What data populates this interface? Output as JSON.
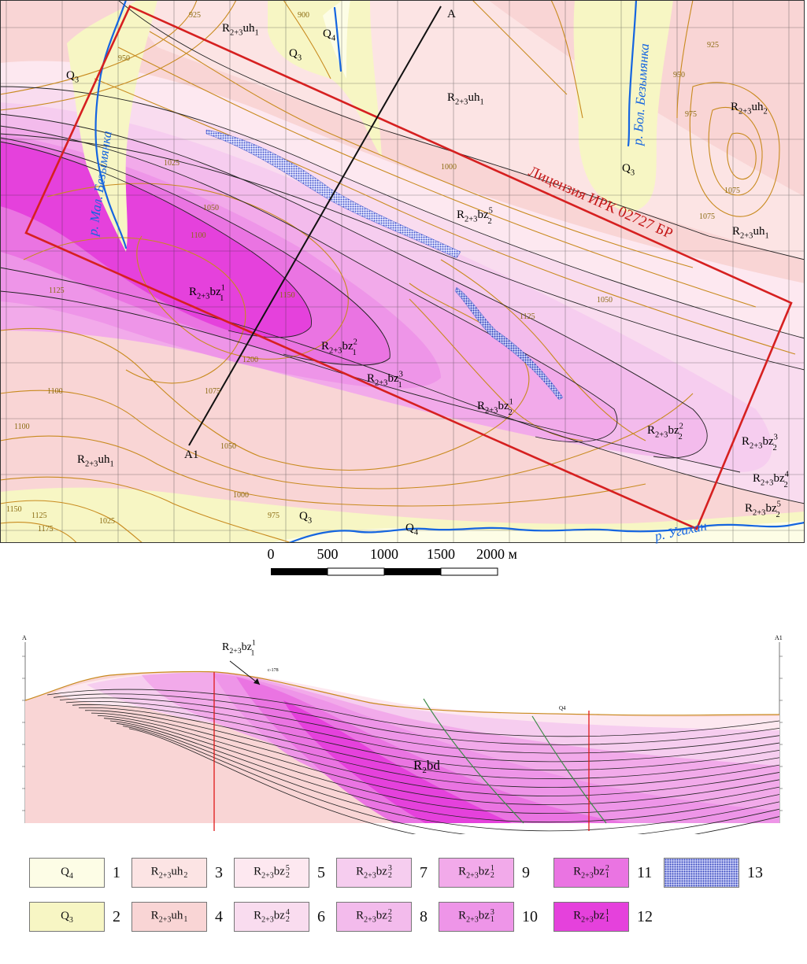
{
  "map": {
    "colors": {
      "Q4": "#fdfde6",
      "Q3": "#f7f6c4",
      "uh2": "#fce4e4",
      "uh1": "#f9d5d5",
      "bz2_5": "#fde8f0",
      "bz2_4": "#f9dcef",
      "bz2_3": "#f6cdef",
      "bz2_2": "#f3bbec",
      "bz2_1": "#f2aaea",
      "bz1_3": "#ee95e8",
      "bz1_2": "#ea74e2",
      "bz1_1": "#e541dc",
      "river": "#1565e0",
      "license": "#d62020",
      "contour": "#c88a1e",
      "section_line": "#111111",
      "dots": "#5566dd"
    },
    "license_label": "Лицензия ИРК 02727 БР",
    "section_end_a": "A",
    "section_end_a1": "A1",
    "rivers": [
      {
        "label": "р. Мал. Безымянка"
      },
      {
        "label": "р. Бол. Безымянка"
      },
      {
        "label": "р. Угахан"
      }
    ],
    "unit_labels": [
      {
        "base": "R",
        "sub": "2+3",
        "main": "uh",
        "sub2": "1",
        "sup": ""
      },
      {
        "base": "Q",
        "sub": "4",
        "main": "",
        "sub2": "",
        "sup": ""
      },
      {
        "base": "Q",
        "sub": "3",
        "main": "",
        "sub2": "",
        "sup": ""
      },
      {
        "base": "Q",
        "sub": "3",
        "main": "",
        "sub2": "",
        "sup": ""
      },
      {
        "base": "R",
        "sub": "2+3",
        "main": "uh",
        "sub2": "1",
        "sup": ""
      },
      {
        "base": "R",
        "sub": "2+3",
        "main": "uh",
        "sub2": "2",
        "sup": ""
      },
      {
        "base": "Q",
        "sub": "3",
        "main": "",
        "sub2": "",
        "sup": ""
      },
      {
        "base": "R",
        "sub": "2+3",
        "main": "bz",
        "sub2": "2",
        "sup": "5"
      },
      {
        "base": "R",
        "sub": "2+3",
        "main": "uh",
        "sub2": "1",
        "sup": ""
      },
      {
        "base": "R",
        "sub": "2+3",
        "main": "bz",
        "sub2": "1",
        "sup": "1"
      },
      {
        "base": "R",
        "sub": "2+3",
        "main": "bz",
        "sub2": "1",
        "sup": "2"
      },
      {
        "base": "R",
        "sub": "2+3",
        "main": "bz",
        "sub2": "1",
        "sup": "3"
      },
      {
        "base": "R",
        "sub": "2+3",
        "main": "bz",
        "sub2": "2",
        "sup": "1"
      },
      {
        "base": "R",
        "sub": "2+3",
        "main": "bz",
        "sub2": "2",
        "sup": "2"
      },
      {
        "base": "R",
        "sub": "2+3",
        "main": "bz",
        "sub2": "2",
        "sup": "3"
      },
      {
        "base": "R",
        "sub": "2+3",
        "main": "bz",
        "sub2": "2",
        "sup": "4"
      },
      {
        "base": "R",
        "sub": "2+3",
        "main": "bz",
        "sub2": "2",
        "sup": "5"
      },
      {
        "base": "R",
        "sub": "2+3",
        "main": "uh",
        "sub2": "1",
        "sup": ""
      },
      {
        "base": "Q",
        "sub": "3",
        "main": "",
        "sub2": "",
        "sup": ""
      },
      {
        "base": "Q",
        "sub": "4",
        "main": "",
        "sub2": "",
        "sup": ""
      }
    ],
    "contour_labels": [
      "925",
      "900",
      "950",
      "1000",
      "1025",
      "1050",
      "975",
      "1075",
      "1100",
      "1125",
      "1150",
      "1200",
      "1075",
      "1050",
      "1100",
      "1100",
      "1000",
      "975",
      "1025",
      "1125",
      "1150",
      "1175",
      "925",
      "950",
      "1075",
      "1125",
      "1050"
    ]
  },
  "scale": {
    "ticks": [
      "0",
      "500",
      "1000",
      "1500",
      "2000 м"
    ]
  },
  "section": {
    "end_a": "A",
    "end_a1": "A1",
    "callout": {
      "base": "R",
      "sub": "2+3",
      "main": "bz",
      "sub2": "1",
      "sup": "1"
    },
    "main_label": {
      "base": "R",
      "sub": "2",
      "main": "bd"
    },
    "well_label": "с-178",
    "q4_label": "Q4"
  },
  "legend": [
    {
      "num": "1",
      "color": "#fdfde6",
      "label": {
        "base": "Q",
        "sub": "4",
        "main": "",
        "sub2": "",
        "sup": ""
      }
    },
    {
      "num": "3",
      "color": "#fce4e4",
      "label": {
        "base": "R",
        "sub": "2+3",
        "main": "uh",
        "sub2": "2",
        "sup": ""
      }
    },
    {
      "num": "5",
      "color": "#fde8f0",
      "label": {
        "base": "R",
        "sub": "2+3",
        "main": "bz",
        "sub2": "2",
        "sup": "5"
      }
    },
    {
      "num": "7",
      "color": "#f6cdef",
      "label": {
        "base": "R",
        "sub": "2+3",
        "main": "bz",
        "sub2": "2",
        "sup": "3"
      }
    },
    {
      "num": "9",
      "color": "#f2aaea",
      "label": {
        "base": "R",
        "sub": "2+3",
        "main": "bz",
        "sub2": "2",
        "sup": "1"
      }
    },
    {
      "num": "11",
      "color": "#ea74e2",
      "label": {
        "base": "R",
        "sub": "2+3",
        "main": "bz",
        "sub2": "1",
        "sup": "2"
      }
    },
    {
      "num": "13",
      "color": "#6d7bdc",
      "label": null
    },
    {
      "num": "2",
      "color": "#f7f6c4",
      "label": {
        "base": "Q",
        "sub": "3",
        "main": "",
        "sub2": "",
        "sup": ""
      }
    },
    {
      "num": "4",
      "color": "#f9d5d5",
      "label": {
        "base": "R",
        "sub": "2+3",
        "main": "uh",
        "sub2": "1",
        "sup": ""
      }
    },
    {
      "num": "6",
      "color": "#f9dcef",
      "label": {
        "base": "R",
        "sub": "2+3",
        "main": "bz",
        "sub2": "2",
        "sup": "4"
      }
    },
    {
      "num": "8",
      "color": "#f3bbec",
      "label": {
        "base": "R",
        "sub": "2+3",
        "main": "bz",
        "sub2": "2",
        "sup": "2"
      }
    },
    {
      "num": "10",
      "color": "#ee95e8",
      "label": {
        "base": "R",
        "sub": "2+3",
        "main": "bz",
        "sub2": "1",
        "sup": "3"
      }
    },
    {
      "num": "12",
      "color": "#e541dc",
      "label": {
        "base": "R",
        "sub": "2+3",
        "main": "bz",
        "sub2": "1",
        "sup": "1"
      }
    }
  ]
}
